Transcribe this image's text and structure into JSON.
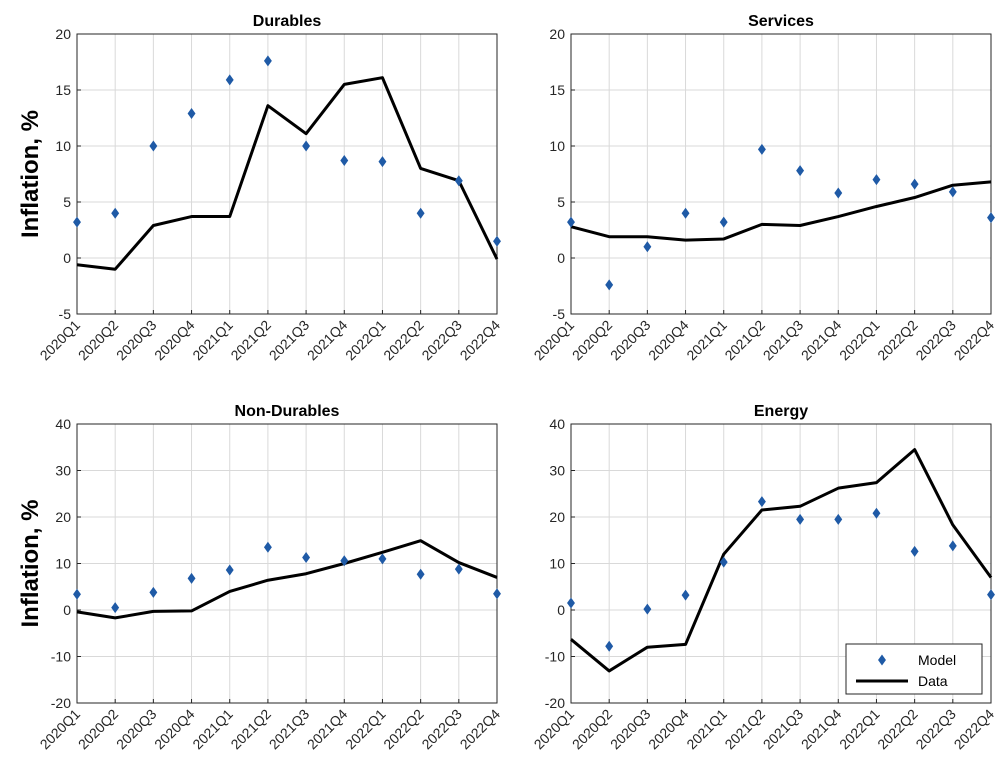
{
  "chart_data": [
    {
      "type": "line",
      "title": "Durables",
      "ylabel": "Inflation, %",
      "ylim": [
        -5,
        20
      ],
      "yticks": [
        -5,
        0,
        5,
        10,
        15,
        20
      ],
      "categories": [
        "2020Q1",
        "2020Q2",
        "2020Q3",
        "2020Q4",
        "2021Q1",
        "2021Q2",
        "2021Q3",
        "2021Q4",
        "2022Q1",
        "2022Q2",
        "2022Q3",
        "2022Q4"
      ],
      "series": [
        {
          "name": "Model",
          "style": "marker",
          "values": [
            3.2,
            4.0,
            10.0,
            12.9,
            15.9,
            17.6,
            10.0,
            8.7,
            8.6,
            4.0,
            6.9,
            1.5
          ]
        },
        {
          "name": "Data",
          "style": "line",
          "values": [
            -0.6,
            -1.0,
            2.9,
            3.7,
            3.7,
            13.6,
            11.1,
            15.5,
            16.1,
            8.0,
            6.9,
            -0.1
          ]
        }
      ],
      "grid": true,
      "legend": null
    },
    {
      "type": "line",
      "title": "Services",
      "ylabel": "",
      "ylim": [
        -5,
        20
      ],
      "yticks": [
        -5,
        0,
        5,
        10,
        15,
        20
      ],
      "categories": [
        "2020Q1",
        "2020Q2",
        "2020Q3",
        "2020Q4",
        "2021Q1",
        "2021Q2",
        "2021Q3",
        "2021Q4",
        "2022Q1",
        "2022Q2",
        "2022Q3",
        "2022Q4"
      ],
      "series": [
        {
          "name": "Model",
          "style": "marker",
          "values": [
            3.2,
            -2.4,
            1.0,
            4.0,
            3.2,
            9.7,
            7.8,
            5.8,
            7.0,
            6.6,
            5.9,
            3.6
          ]
        },
        {
          "name": "Data",
          "style": "line",
          "values": [
            2.8,
            1.9,
            1.9,
            1.6,
            1.7,
            3.0,
            2.9,
            3.7,
            4.6,
            5.4,
            6.5,
            6.8
          ]
        }
      ],
      "grid": true,
      "legend": null
    },
    {
      "type": "line",
      "title": "Non-Durables",
      "ylabel": "Inflation, %",
      "ylim": [
        -20,
        40
      ],
      "yticks": [
        -20,
        -10,
        0,
        10,
        20,
        30,
        40
      ],
      "categories": [
        "2020Q1",
        "2020Q2",
        "2020Q3",
        "2020Q4",
        "2021Q1",
        "2021Q2",
        "2021Q3",
        "2021Q4",
        "2022Q1",
        "2022Q2",
        "2022Q3",
        "2022Q4"
      ],
      "series": [
        {
          "name": "Model",
          "style": "marker",
          "values": [
            3.4,
            0.5,
            3.8,
            6.8,
            8.6,
            13.5,
            11.3,
            10.6,
            11.0,
            7.7,
            8.8,
            3.5
          ]
        },
        {
          "name": "Data",
          "style": "line",
          "values": [
            -0.4,
            -1.7,
            -0.3,
            -0.2,
            4.0,
            6.4,
            7.8,
            10.0,
            12.4,
            14.9,
            10.2,
            7.0
          ]
        }
      ],
      "grid": true,
      "legend": null
    },
    {
      "type": "line",
      "title": "Energy",
      "ylabel": "",
      "ylim": [
        -20,
        40
      ],
      "yticks": [
        -20,
        -10,
        0,
        10,
        20,
        30,
        40
      ],
      "categories": [
        "2020Q1",
        "2020Q2",
        "2020Q3",
        "2020Q4",
        "2021Q1",
        "2021Q2",
        "2021Q3",
        "2021Q4",
        "2022Q1",
        "2022Q2",
        "2022Q3",
        "2022Q4"
      ],
      "series": [
        {
          "name": "Model",
          "style": "marker",
          "values": [
            1.5,
            -7.8,
            0.2,
            3.2,
            10.3,
            23.3,
            19.5,
            19.5,
            20.8,
            12.6,
            13.8,
            3.3
          ]
        },
        {
          "name": "Data",
          "style": "line",
          "values": [
            -6.3,
            -13.1,
            -8.0,
            -7.4,
            12.0,
            21.5,
            22.3,
            26.2,
            27.4,
            34.5,
            18.3,
            7.0
          ]
        }
      ],
      "grid": true,
      "legend": "bottom-right"
    }
  ],
  "style": {
    "marker_color": "#1f5aa6",
    "line_color": "#000000",
    "grid_color": "#d9d9d9",
    "axis_color": "#262626"
  }
}
